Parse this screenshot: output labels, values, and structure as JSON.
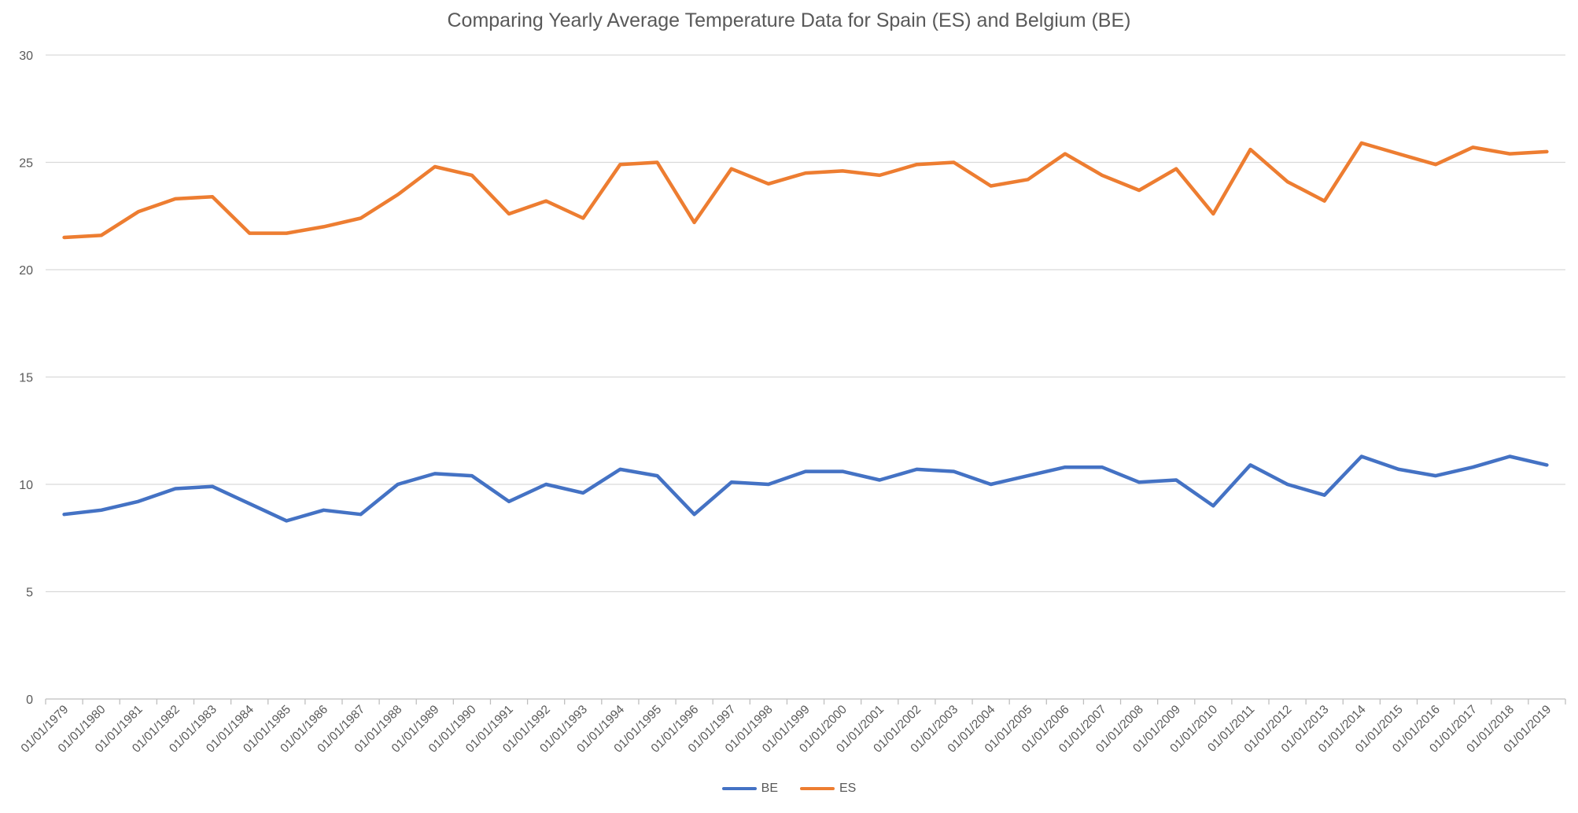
{
  "chart_data": {
    "type": "line",
    "title": "Comparing Yearly Average Temperature Data for Spain (ES) and Belgium (BE)",
    "xlabel": "",
    "ylabel": "",
    "ylim": [
      0,
      30
    ],
    "yticks": [
      0,
      5,
      10,
      15,
      20,
      25,
      30
    ],
    "grid": true,
    "legend_position": "bottom",
    "categories": [
      "01/01/1979",
      "01/01/1980",
      "01/01/1981",
      "01/01/1982",
      "01/01/1983",
      "01/01/1984",
      "01/01/1985",
      "01/01/1986",
      "01/01/1987",
      "01/01/1988",
      "01/01/1989",
      "01/01/1990",
      "01/01/1991",
      "01/01/1992",
      "01/01/1993",
      "01/01/1994",
      "01/01/1995",
      "01/01/1996",
      "01/01/1997",
      "01/01/1998",
      "01/01/1999",
      "01/01/2000",
      "01/01/2001",
      "01/01/2002",
      "01/01/2003",
      "01/01/2004",
      "01/01/2005",
      "01/01/2006",
      "01/01/2007",
      "01/01/2008",
      "01/01/2009",
      "01/01/2010",
      "01/01/2011",
      "01/01/2012",
      "01/01/2013",
      "01/01/2014",
      "01/01/2015",
      "01/01/2016",
      "01/01/2017",
      "01/01/2018",
      "01/01/2019"
    ],
    "series": [
      {
        "name": "BE",
        "color": "#4472C4",
        "values": [
          8.6,
          8.8,
          9.2,
          9.8,
          9.9,
          9.1,
          8.3,
          8.8,
          8.6,
          10.0,
          10.5,
          10.4,
          9.2,
          10.0,
          9.6,
          10.7,
          10.4,
          8.6,
          10.1,
          10.0,
          10.6,
          10.6,
          10.2,
          10.7,
          10.6,
          10.0,
          10.4,
          10.8,
          10.8,
          10.1,
          10.2,
          9.0,
          10.9,
          10.0,
          9.5,
          11.3,
          10.7,
          10.4,
          10.8,
          11.3,
          10.9
        ]
      },
      {
        "name": "ES",
        "color": "#ED7D31",
        "values": [
          21.5,
          21.6,
          22.7,
          23.3,
          23.4,
          21.7,
          21.7,
          22.0,
          22.4,
          23.5,
          24.8,
          24.4,
          22.6,
          23.2,
          22.4,
          24.9,
          25.0,
          22.2,
          24.7,
          24.0,
          24.5,
          24.6,
          24.4,
          24.9,
          25.0,
          23.9,
          24.2,
          25.4,
          24.4,
          23.7,
          24.7,
          22.6,
          25.6,
          24.1,
          23.2,
          25.9,
          25.4,
          24.9,
          25.7,
          25.4,
          25.5
        ]
      }
    ]
  }
}
